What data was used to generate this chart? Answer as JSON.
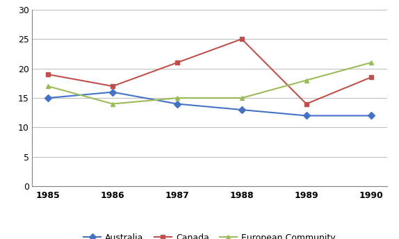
{
  "years": [
    1985,
    1986,
    1987,
    1988,
    1989,
    1990
  ],
  "australia": [
    15,
    16,
    14,
    13,
    12,
    12
  ],
  "canada": [
    19,
    17,
    21,
    25,
    14,
    18.5
  ],
  "european_community": [
    17,
    14,
    15,
    15,
    18,
    21
  ],
  "australia_color": "#4472C4",
  "canada_color": "#C0504D",
  "ec_color": "#9BBB59",
  "ylim": [
    0,
    30
  ],
  "yticks": [
    0,
    5,
    10,
    15,
    20,
    25,
    30
  ],
  "legend_labels": [
    "Australia",
    "Canada",
    "European Community"
  ],
  "australia_marker": "D",
  "canada_marker": "s",
  "ec_marker": "^",
  "linewidth": 1.5,
  "markersize": 5,
  "background_color": "#ffffff",
  "grid_color": "#c0c0c0",
  "tick_label_fontsize": 9,
  "tick_label_fontweight": "bold"
}
